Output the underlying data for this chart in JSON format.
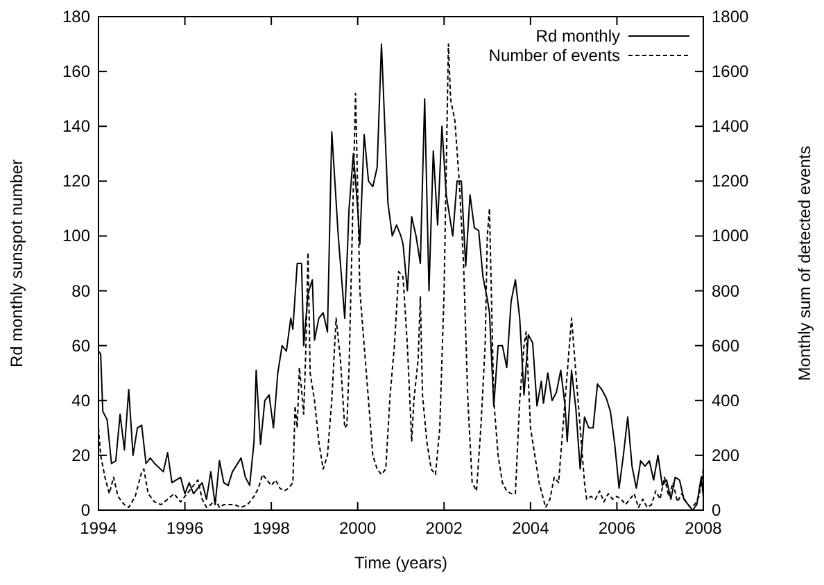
{
  "chart_data": {
    "type": "line",
    "xlabel": "Time (years)",
    "ylabel": "Rd monthly sunspot number",
    "y2label": "Monthly sum of detected events",
    "xlim": [
      1994,
      2008
    ],
    "xticks": [
      1994,
      1996,
      1998,
      2000,
      2002,
      2004,
      2006,
      2008
    ],
    "ylim": [
      0,
      180
    ],
    "yticks": [
      0,
      20,
      40,
      60,
      80,
      100,
      120,
      140,
      160,
      180
    ],
    "y2lim": [
      0,
      1800
    ],
    "y2ticks": [
      0,
      200,
      400,
      600,
      800,
      1000,
      1200,
      1400,
      1600,
      1800
    ],
    "legend": "top right",
    "grid": false,
    "series": [
      {
        "name": "Rd monthly",
        "color": "#000000",
        "line_style": "solid",
        "x": [
          1994.0,
          1994.05,
          1994.1,
          1994.2,
          1994.3,
          1994.4,
          1994.5,
          1994.6,
          1994.7,
          1994.8,
          1994.9,
          1995.0,
          1995.1,
          1995.2,
          1995.3,
          1995.5,
          1995.6,
          1995.7,
          1995.9,
          1996.0,
          1996.1,
          1996.2,
          1996.4,
          1996.5,
          1996.6,
          1996.7,
          1996.8,
          1996.9,
          1997.0,
          1997.1,
          1997.3,
          1997.4,
          1997.5,
          1997.6,
          1997.65,
          1997.75,
          1997.85,
          1997.95,
          1998.05,
          1998.15,
          1998.25,
          1998.35,
          1998.45,
          1998.5,
          1998.6,
          1998.7,
          1998.75,
          1998.85,
          1998.95,
          1999.0,
          1999.1,
          1999.2,
          1999.3,
          1999.4,
          1999.55,
          1999.7,
          1999.8,
          1999.9,
          2000.0,
          2000.05,
          2000.15,
          2000.25,
          2000.35,
          2000.45,
          2000.55,
          2000.7,
          2000.8,
          2000.9,
          2001.0,
          2001.05,
          2001.15,
          2001.25,
          2001.35,
          2001.45,
          2001.55,
          2001.65,
          2001.75,
          2001.85,
          2001.95,
          2002.05,
          2002.2,
          2002.3,
          2002.4,
          2002.5,
          2002.6,
          2002.7,
          2002.8,
          2002.9,
          2003.0,
          2003.05,
          2003.15,
          2003.25,
          2003.35,
          2003.45,
          2003.55,
          2003.65,
          2003.75,
          2003.85,
          2003.95,
          2004.05,
          2004.15,
          2004.25,
          2004.3,
          2004.4,
          2004.5,
          2004.6,
          2004.7,
          2004.8,
          2004.85,
          2004.95,
          2005.05,
          2005.15,
          2005.25,
          2005.35,
          2005.45,
          2005.55,
          2005.65,
          2005.75,
          2005.85,
          2005.95,
          2006.05,
          2006.15,
          2006.25,
          2006.35,
          2006.45,
          2006.55,
          2006.65,
          2006.75,
          2006.85,
          2006.95,
          2007.05,
          2007.15,
          2007.25,
          2007.35,
          2007.45,
          2007.55,
          2007.65,
          2007.75,
          2007.85,
          2007.95,
          2008.0
        ],
        "values": [
          58,
          57,
          36,
          33,
          17,
          18,
          35,
          22,
          44,
          20,
          30,
          31,
          17,
          19,
          17,
          14,
          21,
          10,
          12,
          6,
          10,
          6,
          10,
          4,
          14,
          2,
          18,
          10,
          9,
          14,
          19,
          12,
          9,
          25,
          51,
          24,
          40,
          42,
          30,
          50,
          60,
          58,
          70,
          66,
          90,
          90,
          60,
          79,
          84,
          62,
          70,
          72,
          65,
          138,
          100,
          70,
          110,
          130,
          110,
          97,
          137,
          120,
          118,
          125,
          170,
          112,
          100,
          104,
          100,
          97,
          80,
          107,
          100,
          90,
          150,
          80,
          131,
          104,
          140,
          115,
          100,
          120,
          120,
          89,
          115,
          103,
          102,
          85,
          77,
          72,
          38,
          60,
          60,
          52,
          76,
          84,
          70,
          42,
          64,
          61,
          38,
          47,
          39,
          50,
          40,
          43,
          51,
          38,
          25,
          51,
          37,
          15,
          34,
          30,
          30,
          46,
          44,
          41,
          36,
          24,
          8,
          20,
          34,
          16,
          8,
          18,
          16,
          18,
          11,
          20,
          9,
          11,
          4,
          12,
          11,
          4,
          2,
          0,
          2,
          12,
          5
        ]
      },
      {
        "name": "Number of events",
        "color": "#000000",
        "line_style": "dashed",
        "axis": "y2",
        "x": [
          1994.0,
          1994.05,
          1994.15,
          1994.25,
          1994.35,
          1994.45,
          1994.6,
          1994.7,
          1994.85,
          1995.0,
          1995.05,
          1995.15,
          1995.3,
          1995.45,
          1995.6,
          1995.75,
          1995.9,
          1996.0,
          1996.15,
          1996.3,
          1996.4,
          1996.5,
          1996.6,
          1996.7,
          1996.8,
          1996.9,
          1997.0,
          1997.15,
          1997.3,
          1997.45,
          1997.6,
          1997.7,
          1997.8,
          1997.9,
          1998.0,
          1998.1,
          1998.2,
          1998.3,
          1998.4,
          1998.5,
          1998.55,
          1998.6,
          1998.65,
          1998.7,
          1998.75,
          1998.8,
          1998.85,
          1998.9,
          1999.0,
          1999.1,
          1999.2,
          1999.3,
          1999.4,
          1999.5,
          1999.6,
          1999.7,
          1999.75,
          1999.8,
          1999.85,
          1999.95,
          2000.05,
          2000.15,
          2000.25,
          2000.35,
          2000.45,
          2000.55,
          2000.65,
          2000.75,
          2000.85,
          2000.95,
          2001.05,
          2001.15,
          2001.25,
          2001.3,
          2001.4,
          2001.45,
          2001.5,
          2001.6,
          2001.7,
          2001.8,
          2001.9,
          2002.0,
          2002.1,
          2002.15,
          2002.25,
          2002.35,
          2002.45,
          2002.55,
          2002.65,
          2002.75,
          2002.85,
          2002.95,
          2003.0,
          2003.05,
          2003.15,
          2003.25,
          2003.35,
          2003.45,
          2003.55,
          2003.65,
          2003.75,
          2003.85,
          2003.9,
          2004.0,
          2004.1,
          2004.2,
          2004.3,
          2004.35,
          2004.45,
          2004.55,
          2004.65,
          2004.75,
          2004.85,
          2004.95,
          2005.05,
          2005.15,
          2005.25,
          2005.3,
          2005.4,
          2005.5,
          2005.6,
          2005.7,
          2005.8,
          2005.9,
          2006.0,
          2006.1,
          2006.2,
          2006.3,
          2006.4,
          2006.5,
          2006.6,
          2006.7,
          2006.8,
          2006.9,
          2007.0,
          2007.1,
          2007.2,
          2007.3,
          2007.4,
          2007.5,
          2007.6,
          2007.7,
          2007.8,
          2007.9,
          2008.0
        ],
        "values": [
          300,
          200,
          120,
          60,
          120,
          50,
          20,
          10,
          50,
          140,
          150,
          60,
          30,
          20,
          40,
          60,
          30,
          50,
          80,
          110,
          40,
          10,
          20,
          40,
          10,
          20,
          20,
          20,
          10,
          20,
          50,
          80,
          130,
          110,
          90,
          110,
          80,
          70,
          80,
          100,
          380,
          300,
          520,
          440,
          350,
          590,
          940,
          500,
          400,
          250,
          150,
          200,
          400,
          700,
          550,
          300,
          310,
          520,
          850,
          1520,
          800,
          600,
          400,
          200,
          150,
          130,
          150,
          420,
          600,
          870,
          850,
          600,
          250,
          400,
          550,
          780,
          420,
          250,
          150,
          130,
          300,
          800,
          1700,
          1500,
          1420,
          1200,
          900,
          400,
          100,
          70,
          300,
          600,
          1000,
          1100,
          400,
          200,
          100,
          70,
          60,
          60,
          400,
          600,
          650,
          300,
          200,
          100,
          40,
          10,
          40,
          120,
          100,
          300,
          500,
          700,
          500,
          300,
          100,
          40,
          50,
          40,
          70,
          30,
          60,
          40,
          50,
          40,
          20,
          40,
          60,
          10,
          40,
          10,
          20,
          70,
          40,
          120,
          50,
          100,
          30,
          60,
          30,
          10,
          20,
          50,
          150
        ]
      }
    ]
  }
}
